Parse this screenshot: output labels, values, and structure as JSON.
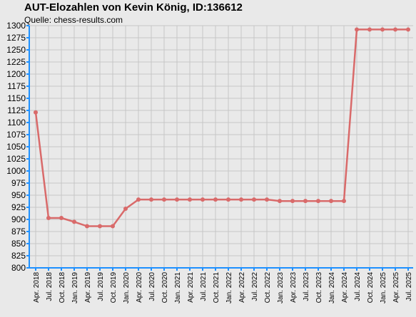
{
  "title": "AUT-Elozahlen von Kevin König, ID:136612",
  "subtitle": "Quelle: chess-results.com",
  "colors": {
    "background": "#e9e9e9",
    "grid": "#c6c6c6",
    "axis": "#1e90ff",
    "series": "#d96a6a"
  },
  "chart_data": {
    "type": "line",
    "title": "AUT-Elozahlen von Kevin König, ID:136612",
    "subtitle": "Quelle: chess-results.com",
    "xlabel": "",
    "ylabel": "",
    "ylim": [
      800,
      1300
    ],
    "grid": true,
    "yticks": [
      800,
      825,
      850,
      875,
      900,
      925,
      950,
      975,
      1000,
      1025,
      1050,
      1075,
      1100,
      1125,
      1150,
      1175,
      1200,
      1225,
      1250,
      1275,
      1300
    ],
    "categories": [
      "Apr. 2018",
      "Jul. 2018",
      "Oct. 2018",
      "Jan. 2019",
      "Apr. 2019",
      "Jul. 2019",
      "Oct. 2019",
      "Jan. 2020",
      "Apr. 2020",
      "Jul. 2020",
      "Oct. 2020",
      "Jan. 2021",
      "Apr. 2021",
      "Jul. 2021",
      "Oct. 2021",
      "Jan. 2022",
      "Apr. 2022",
      "Jul. 2022",
      "Oct. 2022",
      "Jan. 2023",
      "Apr. 2023",
      "Jul. 2023",
      "Oct. 2023",
      "Jan. 2024",
      "Apr. 2024",
      "Jul. 2024",
      "Oct. 2024",
      "Jan. 2025",
      "Apr. 2025",
      "Jul. 2025"
    ],
    "values": [
      1121,
      903,
      903,
      895,
      886,
      886,
      886,
      922,
      941,
      941,
      941,
      941,
      941,
      941,
      941,
      941,
      941,
      941,
      941,
      938,
      938,
      938,
      938,
      938,
      938,
      1292,
      1292,
      1292,
      1292,
      1292
    ]
  }
}
